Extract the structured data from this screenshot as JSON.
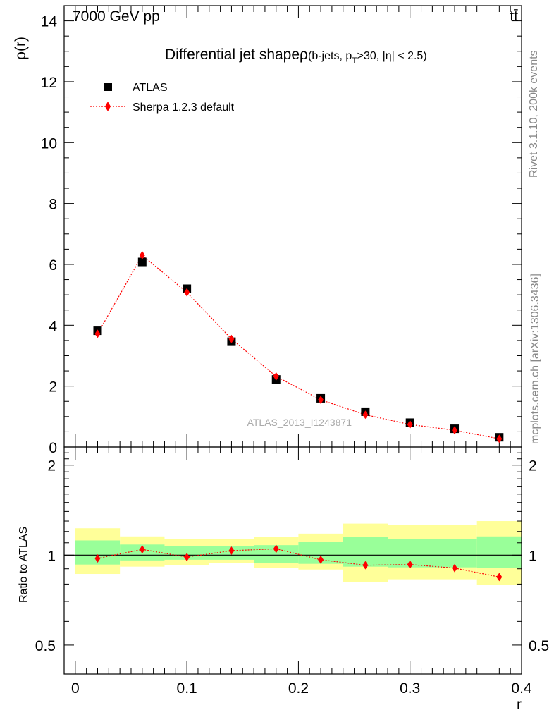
{
  "header": {
    "energy_label": "7000 GeV pp",
    "process_label": "tt̄"
  },
  "side_labels": {
    "rivet": "Rivet 3.1.10,  200k events",
    "mcplots": "mcplots.cern.ch [arXiv:1306.3436]"
  },
  "chart_data": [
    {
      "type": "scatter",
      "title_main": "Differential jet shapeρ",
      "title_sub_a": "(b-jets, p",
      "title_sub_b": "T",
      "title_sub_c": ">30, |η| < 2.5)",
      "ylabel": "ρ(r)",
      "xlim": [
        -0.01,
        0.4
      ],
      "ylim": [
        0,
        14.5
      ],
      "yticks": [
        0,
        2,
        4,
        6,
        8,
        10,
        12,
        14
      ],
      "ytick_labels": [
        "0",
        "2",
        "4",
        "6",
        "8",
        "10",
        "12",
        "14"
      ],
      "watermark": "ATLAS_2013_I1243871",
      "legend_position": "top-left",
      "x": [
        0.02,
        0.06,
        0.1,
        0.14,
        0.18,
        0.22,
        0.26,
        0.3,
        0.34,
        0.38
      ],
      "series": [
        {
          "name": "ATLAS",
          "marker": "square",
          "color": "#000000",
          "values": [
            3.82,
            6.08,
            5.2,
            3.46,
            2.22,
            1.6,
            1.16,
            0.8,
            0.6,
            0.32
          ]
        },
        {
          "name": "Sherpa 1.2.3 default",
          "marker": "diamond",
          "line": "dotted",
          "color": "#ff0000",
          "values": [
            3.72,
            6.3,
            5.08,
            3.55,
            2.32,
            1.55,
            1.06,
            0.74,
            0.55,
            0.27
          ]
        }
      ]
    },
    {
      "type": "scatter",
      "ylabel": "Ratio to ATLAS",
      "xlabel": "r",
      "xlim": [
        -0.01,
        0.4
      ],
      "ylim": [
        0.4,
        2.3
      ],
      "yticks": [
        0.5,
        1,
        2
      ],
      "ytick_labels": [
        "0.5",
        "1",
        "2"
      ],
      "xticks": [
        0,
        0.1,
        0.2,
        0.3,
        0.4
      ],
      "xtick_labels": [
        "0",
        "0.1",
        "0.2",
        "0.3",
        "0.4"
      ],
      "bins": [
        [
          0.0,
          0.04
        ],
        [
          0.04,
          0.08
        ],
        [
          0.08,
          0.12
        ],
        [
          0.12,
          0.16
        ],
        [
          0.16,
          0.2
        ],
        [
          0.2,
          0.24
        ],
        [
          0.24,
          0.28
        ],
        [
          0.28,
          0.36
        ],
        [
          0.36,
          0.4
        ]
      ],
      "band_yellow": [
        [
          0.865,
          1.23
        ],
        [
          0.915,
          1.155
        ],
        [
          0.925,
          1.135
        ],
        [
          0.94,
          1.135
        ],
        [
          0.905,
          1.15
        ],
        [
          0.895,
          1.18
        ],
        [
          0.815,
          1.275
        ],
        [
          0.83,
          1.26
        ],
        [
          0.795,
          1.3
        ]
      ],
      "band_green": [
        [
          0.93,
          1.12
        ],
        [
          0.96,
          1.085
        ],
        [
          0.965,
          1.07
        ],
        [
          0.965,
          1.075
        ],
        [
          0.94,
          1.08
        ],
        [
          0.935,
          1.105
        ],
        [
          0.915,
          1.15
        ],
        [
          0.91,
          1.135
        ],
        [
          0.905,
          1.155
        ]
      ],
      "reference_line": 1,
      "x": [
        0.02,
        0.06,
        0.1,
        0.14,
        0.18,
        0.22,
        0.26,
        0.3,
        0.34,
        0.38
      ],
      "series": [
        {
          "name": "Sherpa 1.2.3 default",
          "marker": "diamond",
          "line": "dotted",
          "color": "#ff0000",
          "values": [
            0.975,
            1.045,
            0.985,
            1.035,
            1.05,
            0.965,
            0.925,
            0.93,
            0.905,
            0.845
          ]
        }
      ],
      "colors": {
        "yellow": "#ffff99",
        "green": "#99ff99"
      }
    }
  ]
}
